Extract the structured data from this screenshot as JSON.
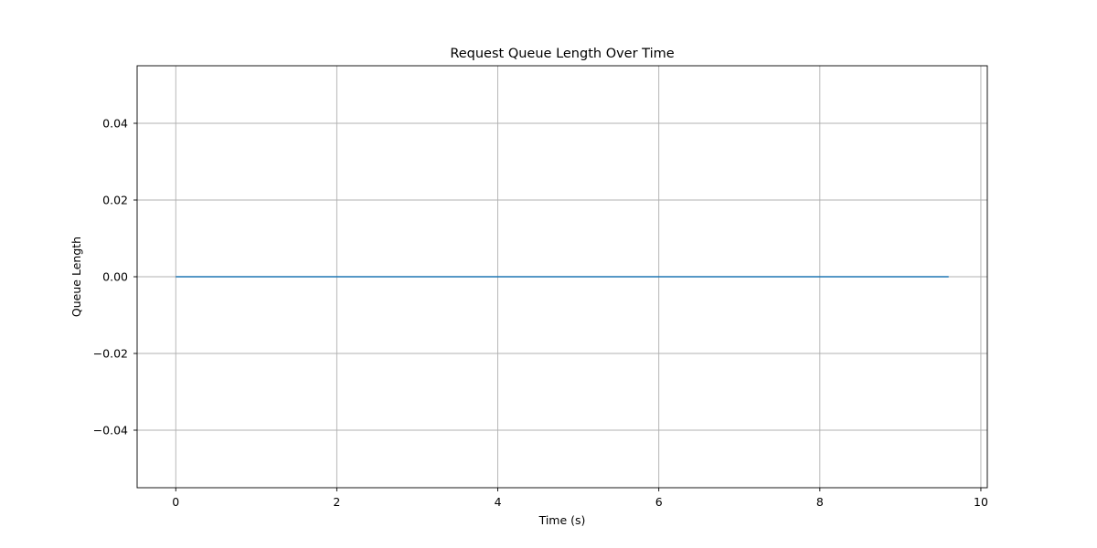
{
  "chart_data": {
    "type": "line",
    "title": "Request Queue Length Over Time",
    "xlabel": "Time (s)",
    "ylabel": "Queue Length",
    "xlim": [
      -0.48,
      10.08
    ],
    "ylim": [
      -0.055,
      0.055
    ],
    "xticks": [
      0,
      2,
      4,
      6,
      8,
      10
    ],
    "xtick_labels": [
      "0",
      "2",
      "4",
      "6",
      "8",
      "10"
    ],
    "yticks": [
      -0.04,
      -0.02,
      0.0,
      0.02,
      0.04
    ],
    "ytick_labels": [
      "−0.04",
      "−0.02",
      "0.00",
      "0.02",
      "0.04"
    ],
    "grid": true,
    "series": [
      {
        "color": "#1f77b4",
        "x": [
          0,
          9.6
        ],
        "y": [
          0,
          0
        ]
      }
    ]
  }
}
